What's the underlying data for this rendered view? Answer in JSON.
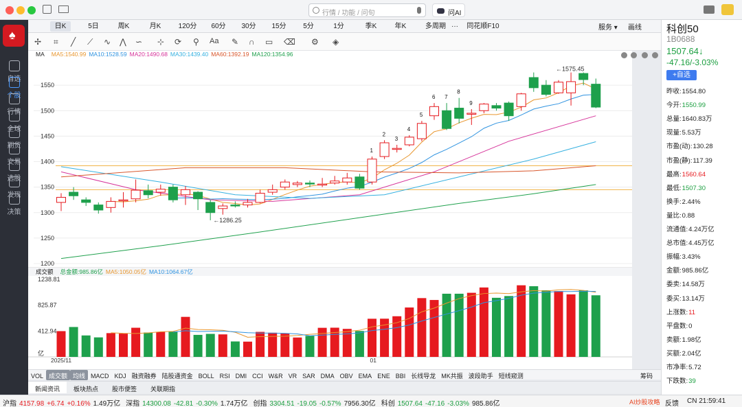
{
  "window": {
    "search_placeholder": "行情 / 功能 / 问句",
    "ask_ai": "问AI"
  },
  "sidebar": [
    {
      "label": "自选"
    },
    {
      "label": "个股"
    },
    {
      "label": "行情"
    },
    {
      "label": "全球"
    },
    {
      "label": "期货"
    },
    {
      "label": "交易"
    },
    {
      "label": "选股"
    },
    {
      "label": "发现"
    },
    {
      "label": "决策"
    }
  ],
  "periods": [
    "日K",
    "5日",
    "周K",
    "月K",
    "120分",
    "60分",
    "30分",
    "15分",
    "5分",
    "1分",
    "季K",
    "年K",
    "多周期",
    "···",
    "同花顺F10"
  ],
  "toolbar_right": {
    "more": "服务 ▾",
    "draw": "画线"
  },
  "ma_bar": {
    "label": "MA",
    "items": [
      {
        "text": "MA5:1540.99",
        "color": "#e8962e"
      },
      {
        "text": "MA10:1528.59",
        "color": "#2f93e0"
      },
      {
        "text": "MA20:1490.68",
        "color": "#d6339a"
      },
      {
        "text": "MA30:1439.40",
        "color": "#34b0e0"
      },
      {
        "text": "MA60:1392.19",
        "color": "#d8552a"
      },
      {
        "text": "MA120:1354.96",
        "color": "#1ea04c"
      }
    ]
  },
  "vol_bar": {
    "label": "成交额",
    "items": [
      {
        "text": "总金额:985.86亿",
        "color": "#1ea04c"
      },
      {
        "text": "MA5:1050.05亿",
        "color": "#e8962e"
      },
      {
        "text": "MA10:1064.67亿",
        "color": "#2f93e0"
      }
    ]
  },
  "price_axis": [
    "1550",
    "1500",
    "1450",
    "1400",
    "1350",
    "1300",
    "1250",
    "1200"
  ],
  "vol_axis": [
    "1238.81",
    "825.87",
    "412.94",
    "亿"
  ],
  "date_labels": [
    "2025/11",
    "01"
  ],
  "annotations": {
    "high": "←1575.45",
    "low": "←1286.25",
    "counts": [
      "1",
      "2",
      "3",
      "4",
      "5",
      "6",
      "7",
      "8",
      "9"
    ]
  },
  "chart_data": {
    "type": "candlestick",
    "candles": [
      [
        1320,
        1330,
        1303,
        1338,
        412,
        "u"
      ],
      [
        1340,
        1333,
        1325,
        1350,
        478,
        "d"
      ],
      [
        1325,
        1320,
        1313,
        1330,
        343,
        "d"
      ],
      [
        1315,
        1305,
        1298,
        1320,
        312,
        "d"
      ],
      [
        1310,
        1322,
        1300,
        1330,
        380,
        "u"
      ],
      [
        1323,
        1325,
        1310,
        1340,
        372,
        "u"
      ],
      [
        1327,
        1344,
        1320,
        1365,
        466,
        "u"
      ],
      [
        1343,
        1335,
        1328,
        1355,
        390,
        "d"
      ],
      [
        1340,
        1346,
        1333,
        1355,
        400,
        "u"
      ],
      [
        1350,
        1325,
        1320,
        1355,
        407,
        "d"
      ],
      [
        1345,
        1335,
        1315,
        1352,
        640,
        "u"
      ],
      [
        1340,
        1327,
        1305,
        1342,
        352,
        "d"
      ],
      [
        1320,
        1300,
        1285,
        1325,
        368,
        "d"
      ],
      [
        1308,
        1313,
        1296,
        1318,
        360,
        "u"
      ],
      [
        1315,
        1314,
        1310,
        1322,
        247,
        "d"
      ],
      [
        1315,
        1320,
        1310,
        1327,
        244,
        "u"
      ],
      [
        1320,
        1338,
        1318,
        1345,
        400,
        "u"
      ],
      [
        1340,
        1345,
        1335,
        1355,
        387,
        "u"
      ],
      [
        1350,
        1360,
        1345,
        1365,
        372,
        "u"
      ],
      [
        1355,
        1358,
        1350,
        1362,
        310,
        "u"
      ],
      [
        1357,
        1358,
        1350,
        1363,
        336,
        "d"
      ],
      [
        1355,
        1356,
        1350,
        1368,
        465,
        "u"
      ],
      [
        1358,
        1362,
        1355,
        1372,
        467,
        "u"
      ],
      [
        1360,
        1368,
        1355,
        1378,
        448,
        "u"
      ],
      [
        1370,
        1348,
        1345,
        1376,
        414,
        "d"
      ],
      [
        1360,
        1405,
        1355,
        1410,
        610,
        "u"
      ],
      [
        1410,
        1437,
        1405,
        1442,
        611,
        "u"
      ],
      [
        1425,
        1426,
        1418,
        1433,
        650,
        "u"
      ],
      [
        1433,
        1448,
        1430,
        1452,
        790,
        "u"
      ],
      [
        1445,
        1475,
        1440,
        1480,
        940,
        "u"
      ],
      [
        1490,
        1508,
        1482,
        1515,
        910,
        "u"
      ],
      [
        1500,
        1465,
        1462,
        1515,
        1010,
        "d"
      ],
      [
        1505,
        1485,
        1475,
        1525,
        1010,
        "d"
      ],
      [
        1495,
        1493,
        1472,
        1503,
        1025,
        "u"
      ],
      [
        1500,
        1513,
        1495,
        1515,
        1110,
        "u"
      ],
      [
        1510,
        1505,
        1500,
        1515,
        945,
        "d"
      ],
      [
        1515,
        1490,
        1480,
        1518,
        973,
        "d"
      ],
      [
        1508,
        1533,
        1500,
        1535,
        1145,
        "u"
      ],
      [
        1545,
        1565,
        1537,
        1575,
        1130,
        "d"
      ],
      [
        1550,
        1532,
        1528,
        1560,
        1065,
        "d"
      ],
      [
        1535,
        1556,
        1533,
        1560,
        1052,
        "u"
      ],
      [
        1535,
        1557,
        1510,
        1575,
        1000,
        "u"
      ],
      [
        1573,
        1561,
        1550,
        1575,
        1065,
        "d"
      ],
      [
        1552,
        1507,
        1505,
        1563,
        985,
        "d"
      ]
    ]
  },
  "bottom_tabs": [
    "VOL",
    "成交额",
    "均线",
    "MACD",
    "KDJ",
    "融资融券",
    "陆股通资金",
    "BOLL",
    "RSI",
    "DMI",
    "CCI",
    "W&R",
    "VR",
    "SAR",
    "DMA",
    "OBV",
    "EMA",
    "ENE",
    "BBI",
    "长线导龙",
    "MK共振",
    "波段助手",
    "短线窥测",
    "筹码"
  ],
  "news_tabs": [
    "新闻资讯",
    "板块热点",
    "股市便签",
    "关联期指"
  ],
  "status": [
    {
      "name": "沪指",
      "value": "4157.98",
      "chg": "+6.74",
      "pct": "+0.16%",
      "amt": "1.49万亿",
      "dir": "up"
    },
    {
      "name": "深指",
      "value": "14300.08",
      "chg": "-42.81",
      "pct": "-0.30%",
      "amt": "1.74万亿",
      "dir": "dn"
    },
    {
      "name": "创指",
      "value": "3304.51",
      "chg": "-19.05",
      "pct": "-0.57%",
      "amt": "7956.30亿",
      "dir": "dn"
    },
    {
      "name": "科创",
      "value": "1507.64",
      "chg": "-47.16",
      "pct": "-3.03%",
      "amt": "985.86亿",
      "dir": "dn"
    }
  ],
  "status_right": {
    "ai": "AI炒股攻略",
    "feedback": "反馈",
    "time": "CN 21:59:41"
  },
  "stock": {
    "name": "科创50",
    "code": "1B0688",
    "price": "1507.64↓",
    "change": "-47.16/-3.03%",
    "add": "+自选"
  },
  "quote": [
    [
      "昨收",
      "1554.80",
      ""
    ],
    [
      "今开",
      "1550.99",
      "dn"
    ],
    [
      "总量",
      "1640.83万",
      ""
    ],
    [
      "现量",
      "5.53万",
      ""
    ],
    [
      "市盈(动)",
      "130.28",
      ""
    ],
    [
      "市盈(静)",
      "117.39",
      ""
    ],
    [
      "最高",
      "1560.64",
      "up"
    ],
    [
      "最低",
      "1507.30",
      "dn"
    ],
    [
      "换手",
      "2.44%",
      ""
    ],
    [
      "量比",
      "0.88",
      ""
    ],
    [
      "流通值",
      "4.24万亿",
      ""
    ],
    [
      "总市值",
      "4.45万亿",
      ""
    ],
    [
      "振幅",
      "3.43%",
      ""
    ],
    [
      "金额",
      "985.86亿",
      ""
    ],
    [
      "委卖",
      "14.58万",
      ""
    ],
    [
      "委买",
      "13.14万",
      ""
    ],
    [
      "上涨数",
      "11",
      "up"
    ],
    [
      "平盘数",
      "0",
      ""
    ],
    [
      "卖额",
      "1.98亿",
      ""
    ],
    [
      "买额",
      "2.04亿",
      ""
    ],
    [
      "市净率",
      "5.72",
      ""
    ],
    [
      "下跌数",
      "39",
      "dn"
    ]
  ]
}
